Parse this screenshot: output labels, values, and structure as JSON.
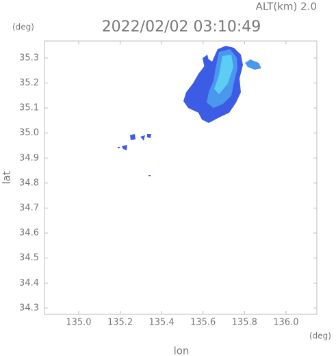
{
  "chart_data": {
    "type": "map",
    "title": "2022/02/02 03:10:49",
    "subtitle": "ALT(km) 2.0",
    "y_unit": "(deg)",
    "x_unit": "(deg)",
    "x_label": "lon",
    "y_label": "lat",
    "xlim": [
      134.835,
      136.149
    ],
    "ylim": [
      34.275,
      35.368
    ],
    "xticks": [
      {
        "value": 135.0,
        "label": "135.0"
      },
      135.2,
      135.4,
      135.6,
      135.8,
      {
        "value": 136.0,
        "label": "136.0"
      }
    ],
    "yticks": [
      34.3,
      34.4,
      34.5,
      34.6,
      34.7,
      34.8,
      34.9,
      {
        "value": 35.0,
        "label": "35.0"
      },
      35.1,
      35.2,
      35.3
    ]
  }
}
